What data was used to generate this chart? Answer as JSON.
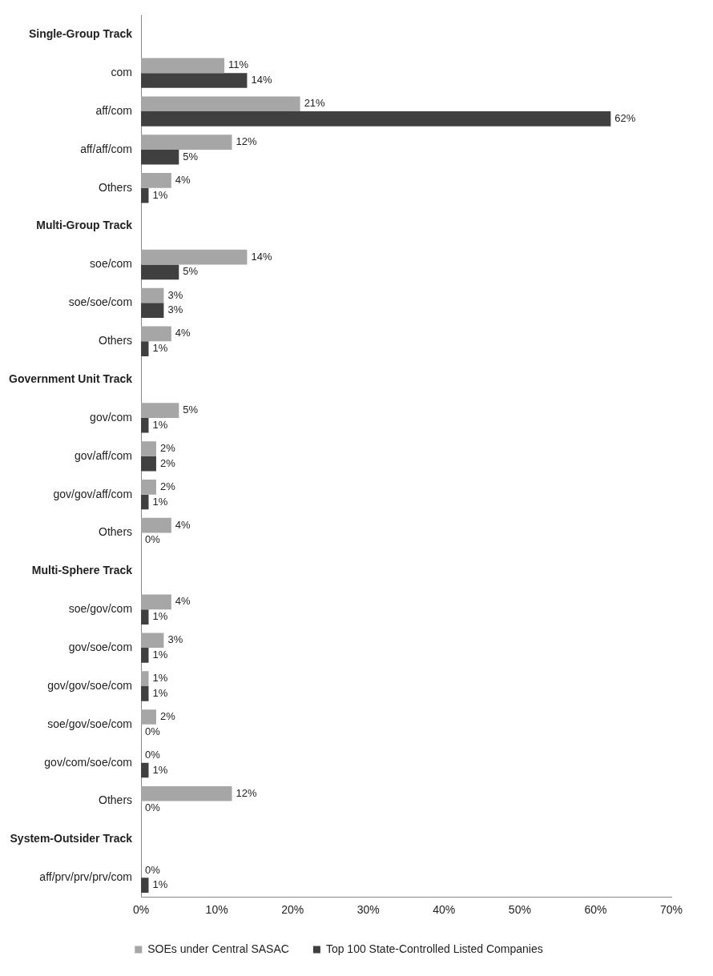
{
  "chart_data": {
    "type": "bar",
    "orientation": "horizontal",
    "categories": [
      "Single-Group Track",
      "com",
      "aff/com",
      "aff/aff/com",
      "Others",
      "Multi-Group Track",
      "soe/com",
      "soe/soe/com",
      "Others",
      "Government Unit Track",
      "gov/com",
      "gov/aff/com",
      "gov/gov/aff/com",
      "Others",
      "Multi-Sphere Track",
      "soe/gov/com",
      "gov/soe/com",
      "gov/gov/soe/com",
      "soe/gov/soe/com",
      "gov/com/soe/com",
      "Others",
      "System-Outsider Track",
      "aff/prv/prv/prv/com"
    ],
    "series": [
      {
        "name": "SOEs under Central SASAC",
        "color": "#a6a6a6",
        "values": [
          null,
          11,
          21,
          12,
          4,
          null,
          14,
          3,
          4,
          null,
          5,
          2,
          2,
          4,
          null,
          4,
          3,
          1,
          2,
          0,
          12,
          null,
          0
        ],
        "value_labels": [
          null,
          "11%",
          "21%",
          "12%",
          "4%",
          null,
          "14%",
          "3%",
          "4%",
          null,
          "5%",
          "2%",
          "2%",
          "4%",
          null,
          "4%",
          "3%",
          "1%",
          "2%",
          "0%",
          "12%",
          null,
          "0%"
        ]
      },
      {
        "name": "Top 100 State-Controlled Listed Companies",
        "color": "#404040",
        "values": [
          null,
          14,
          62,
          5,
          1,
          null,
          5,
          3,
          1,
          null,
          1,
          2,
          1,
          0,
          null,
          1,
          1,
          1,
          0,
          1,
          0,
          null,
          1
        ],
        "value_labels": [
          null,
          "14%",
          "62%",
          "5%",
          "1%",
          null,
          "5%",
          "3%",
          "1%",
          null,
          "1%",
          "2%",
          "1%",
          "0%",
          null,
          "1%",
          "1%",
          "1%",
          "0%",
          "1%",
          "0%",
          null,
          "1%"
        ]
      }
    ],
    "xlim": [
      0,
      70
    ],
    "xticks": [
      {
        "value": 0,
        "label": "0%"
      },
      {
        "value": 10,
        "label": "10%"
      },
      {
        "value": 20,
        "label": "20%"
      },
      {
        "value": 30,
        "label": "30%"
      },
      {
        "value": 40,
        "label": "40%"
      },
      {
        "value": 50,
        "label": "50%"
      },
      {
        "value": 60,
        "label": "60%"
      },
      {
        "value": 70,
        "label": "70%"
      }
    ],
    "grid": false,
    "legend": "bottom"
  }
}
